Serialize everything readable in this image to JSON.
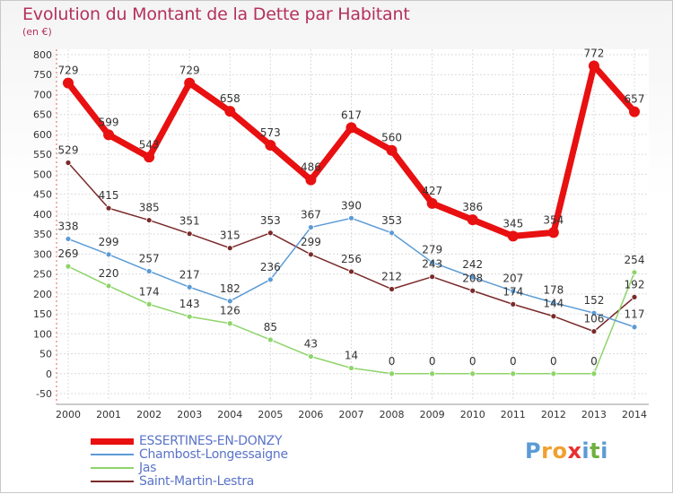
{
  "title": "Evolution du Montant de la Dette par Habitant",
  "subtitle": "(en €)",
  "logo": {
    "letters": [
      "P",
      "r",
      "o",
      "x",
      "i",
      "t",
      "i"
    ],
    "colors": [
      "#5b9bd5",
      "#f0a030",
      "#f0a030",
      "#e83030",
      "#5b9bd5",
      "#70b040",
      "#5b9bd5"
    ]
  },
  "chart_data": {
    "type": "line",
    "x": [
      "2000",
      "2001",
      "2002",
      "2003",
      "2004",
      "2005",
      "2006",
      "2007",
      "2008",
      "2009",
      "2010",
      "2011",
      "2012",
      "2013",
      "2014"
    ],
    "y_ticks": [
      "-50",
      "0",
      "50",
      "100",
      "150",
      "200",
      "250",
      "300",
      "350",
      "400",
      "450",
      "500",
      "550",
      "600",
      "650",
      "700",
      "750",
      "800"
    ],
    "ylim": [
      -50,
      800
    ],
    "grid": true,
    "legend_placement": "bottom-left",
    "series": [
      {
        "name": "Saint-Martin-Lestra",
        "color": "#7a2a2a",
        "values": [
          529,
          415,
          385,
          351,
          315,
          353,
          299,
          256,
          212,
          243,
          208,
          174,
          144,
          106,
          192
        ],
        "labels": [
          "529",
          "415",
          "385",
          "351",
          "315",
          "353",
          "299",
          "256",
          "212",
          "243",
          "208",
          "174",
          "144",
          "106",
          "192"
        ]
      },
      {
        "name": "Jas",
        "color": "#8ed46a",
        "values": [
          269,
          220,
          174,
          143,
          126,
          85,
          43,
          14,
          0,
          0,
          0,
          0,
          0,
          0,
          254
        ],
        "labels": [
          "269",
          "220",
          "174",
          "143",
          "126",
          "85",
          "43",
          "14",
          "0",
          "0",
          "0",
          "0",
          "0",
          "0",
          "254"
        ]
      },
      {
        "name": "Chambost-Longessaigne",
        "color": "#5b9bd5",
        "values": [
          338,
          299,
          257,
          217,
          182,
          236,
          367,
          390,
          353,
          279,
          242,
          207,
          178,
          152,
          117
        ],
        "labels": [
          "338",
          "299",
          "257",
          "217",
          "182",
          "236",
          "367",
          "390",
          "353",
          "279",
          "242",
          "207",
          "178",
          "152",
          "117"
        ]
      },
      {
        "name": "ESSERTINES-EN-DONZY",
        "color": "#e81010",
        "values": [
          729,
          599,
          543,
          729,
          658,
          573,
          486,
          617,
          560,
          427,
          386,
          345,
          354,
          772,
          657
        ],
        "labels": [
          "729",
          "599",
          "543",
          "729",
          "658",
          "573",
          "486",
          "617",
          "560",
          "427",
          "386",
          "345",
          "354",
          "772",
          "657"
        ]
      }
    ],
    "legend": [
      "ESSERTINES-EN-DONZY",
      "Chambost-Longessaigne",
      "Jas",
      "Saint-Martin-Lestra"
    ]
  }
}
